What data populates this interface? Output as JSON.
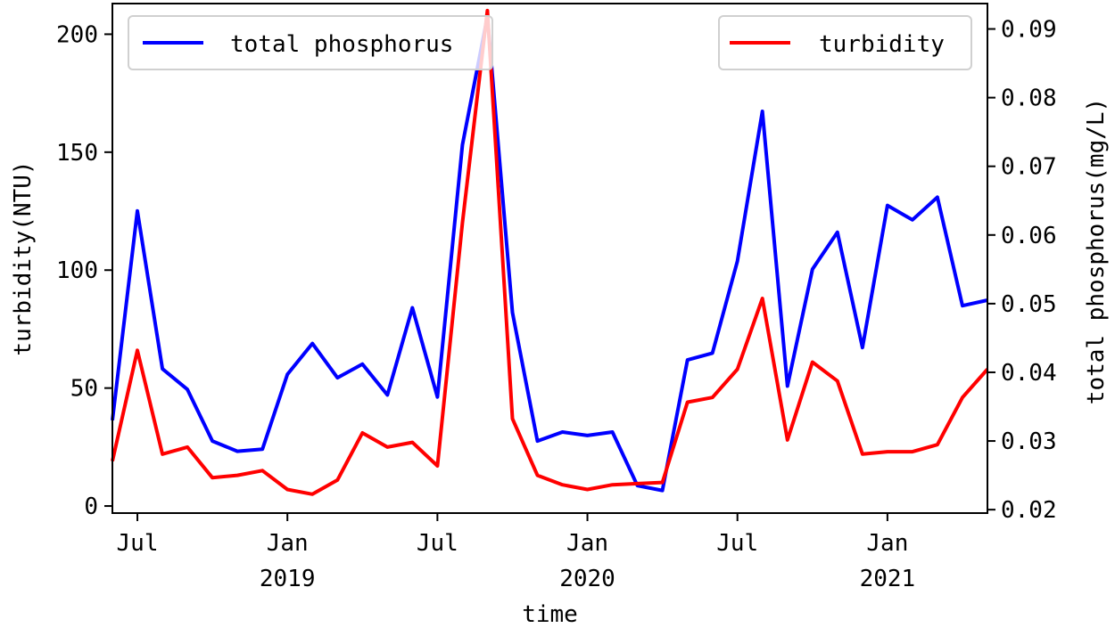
{
  "chart_data": {
    "type": "line",
    "x": [
      "2018-06",
      "2018-07",
      "2018-08",
      "2018-09",
      "2018-10",
      "2018-11",
      "2018-12",
      "2019-01",
      "2019-02",
      "2019-03",
      "2019-04",
      "2019-05",
      "2019-06",
      "2019-07",
      "2019-08",
      "2019-09",
      "2019-10",
      "2019-11",
      "2019-12",
      "2020-01",
      "2020-02",
      "2020-03",
      "2020-04",
      "2020-05",
      "2020-06",
      "2020-07",
      "2020-08",
      "2020-09",
      "2020-10",
      "2020-11",
      "2020-12",
      "2021-01",
      "2021-02",
      "2021-03",
      "2021-04",
      "2021-05"
    ],
    "series": [
      {
        "name": "total phosphorus",
        "axis": "right",
        "color": "#0000ff",
        "values": [
          0.033,
          0.0635,
          0.0405,
          0.0375,
          0.03,
          0.0285,
          0.0288,
          0.0397,
          0.0442,
          0.0392,
          0.0412,
          0.0367,
          0.0494,
          0.0364,
          0.0731,
          0.0918,
          0.0487,
          0.03,
          0.0313,
          0.0308,
          0.0313,
          0.0235,
          0.0228,
          0.0418,
          0.0428,
          0.0562,
          0.078,
          0.038,
          0.055,
          0.0604,
          0.0436,
          0.0643,
          0.0622,
          0.0655,
          0.0497,
          0.0505
        ]
      },
      {
        "name": "turbidity",
        "axis": "left",
        "color": "#ff0000",
        "values": [
          19,
          66,
          22,
          25,
          12,
          13,
          15,
          7,
          5,
          11,
          31,
          25,
          27,
          17,
          120,
          210,
          37,
          13,
          9,
          7,
          9,
          9.5,
          10,
          44,
          46,
          58,
          88,
          28,
          61,
          53,
          22,
          23,
          23,
          26,
          46,
          58
        ]
      }
    ],
    "title": "",
    "xlabel": "time",
    "ylabel": "turbidity(NTU)",
    "y2label": "total phosphorus(mg/L)",
    "ylim": [
      -3,
      213
    ],
    "y2lim": [
      0.0195,
      0.0937
    ],
    "yticks": [
      0,
      50,
      100,
      150,
      200
    ],
    "y2ticks": [
      "0.02",
      "0.03",
      "0.04",
      "0.05",
      "0.06",
      "0.07",
      "0.08",
      "0.09"
    ],
    "xticks": [
      {
        "x": "2018-07",
        "label": "Jul",
        "year": ""
      },
      {
        "x": "2019-01",
        "label": "Jan",
        "year": "2019"
      },
      {
        "x": "2019-07",
        "label": "Jul",
        "year": ""
      },
      {
        "x": "2020-01",
        "label": "Jan",
        "year": "2020"
      },
      {
        "x": "2020-07",
        "label": "Jul",
        "year": ""
      },
      {
        "x": "2021-01",
        "label": "Jan",
        "year": "2021"
      }
    ],
    "legend": [
      {
        "label": "total phosphorus",
        "position": "top-left",
        "color": "#0000ff"
      },
      {
        "label": "turbidity",
        "position": "top-right",
        "color": "#ff0000"
      }
    ]
  }
}
